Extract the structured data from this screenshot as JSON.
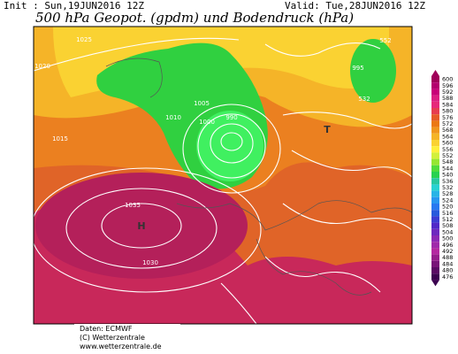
{
  "header": {
    "init": "Init : Sun,19JUN2016 12Z",
    "valid": "Valid: Tue,28JUN2016 12Z",
    "title": "500 hPa Geopot. (gpdm) und Bodendruck (hPa)"
  },
  "map_labels": [
    "1025",
    "1020",
    "1015",
    "1010",
    "1005",
    "1000",
    "995",
    "990",
    "1035",
    "1030",
    "H",
    "T",
    "552",
    "532"
  ],
  "scale": {
    "labels": [
      600,
      596,
      592,
      588,
      584,
      580,
      576,
      572,
      568,
      564,
      560,
      556,
      552,
      548,
      544,
      540,
      536,
      532,
      528,
      524,
      520,
      516,
      512,
      508,
      504,
      500,
      496,
      492,
      488,
      484,
      480,
      476
    ],
    "colors": [
      "#a0005a",
      "#b4006e",
      "#c80078",
      "#dc1e82",
      "#e6287a",
      "#e63c50",
      "#e65a28",
      "#eb7814",
      "#f0961e",
      "#f5b428",
      "#fad232",
      "#fff03c",
      "#d2f03c",
      "#96e632",
      "#50dc3c",
      "#28d250",
      "#28c8a0",
      "#28d2d2",
      "#28b4e6",
      "#2896f0",
      "#2878f0",
      "#285adc",
      "#3c3cd2",
      "#5028c8",
      "#6e28be",
      "#8c28b4",
      "#a028aa",
      "#b428a0",
      "#961e8c",
      "#781478",
      "#5a0a64",
      "#3c0050"
    ]
  },
  "footer": {
    "data": "Daten: ECMWF",
    "copyright": "(C) Wetterzentrale",
    "url": "www.wetterzentrale.de"
  }
}
